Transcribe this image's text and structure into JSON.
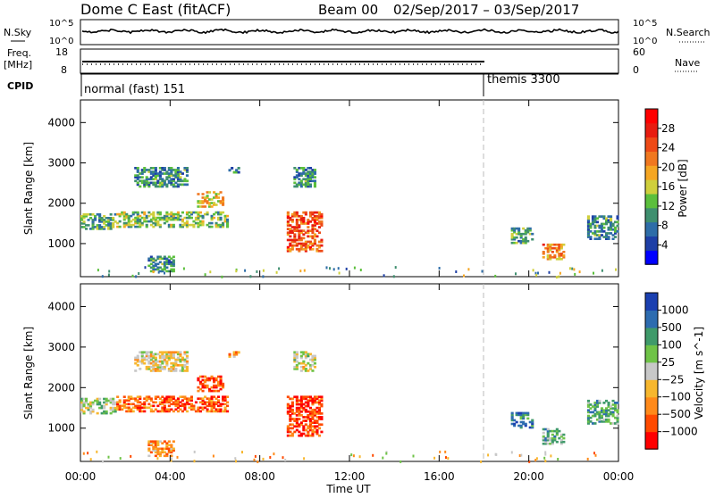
{
  "header": {
    "title": "Dome C East (fitACF)",
    "beam": "Beam 00",
    "date_range": "02/Sep/2017 – 03/Sep/2017"
  },
  "labels": {
    "nsky": "N.Sky",
    "nsearch": "N.Search",
    "freq": "Freq.",
    "mhz": "[MHz]",
    "nave": "Nave",
    "cpid": "CPID",
    "cpid_1": "normal (fast) 151",
    "cpid_2": "themis 3300"
  },
  "noise_panel": {
    "left_ticks": [
      "10^5",
      "10^0"
    ],
    "right_ticks": [
      "10^5",
      "10^0"
    ]
  },
  "freq_panel": {
    "left_ticks": [
      "18",
      "8"
    ],
    "right_ticks": [
      "60",
      "0"
    ]
  },
  "colors": {
    "power": [
      "#0000ff",
      "#1e3fa6",
      "#2e6da8",
      "#3f8f6f",
      "#5bbf3c",
      "#cfcf3c",
      "#f5a623",
      "#f07820",
      "#ee4a17",
      "#e81c10",
      "#ff0000"
    ],
    "velocity": [
      "#ff0000",
      "#ff4a00",
      "#ff8a1a",
      "#f7b72e",
      "#c8c8c8",
      "#6fc347",
      "#3f9a6a",
      "#2d6cb0",
      "#1a3fb0"
    ]
  },
  "chart_data": [
    {
      "type": "heatmap",
      "name": "power",
      "x_range": [
        0,
        24
      ],
      "x_ticks": [
        "00:00",
        "04:00",
        "08:00",
        "12:00",
        "16:00",
        "20:00",
        "00:00"
      ],
      "xlabel": "Time UT",
      "ylabel": "Slant Range [km]",
      "ylim": [
        180,
        4560
      ],
      "y_ticks": [
        1000,
        2000,
        3000,
        4000
      ],
      "colorbar_label": "Power [dB]",
      "colorbar_ticks": [
        4,
        8,
        12,
        16,
        20,
        24,
        28
      ],
      "colorbar_range": [
        0,
        32
      ],
      "mode_change_hour": 18,
      "echo_regions": [
        {
          "t0": 0.0,
          "t1": 1.6,
          "r0": 1350,
          "r1": 1750,
          "level": 0.35
        },
        {
          "t0": 1.6,
          "t1": 6.6,
          "r0": 1400,
          "r1": 1800,
          "level": 0.4
        },
        {
          "t0": 2.4,
          "t1": 4.8,
          "r0": 2400,
          "r1": 2900,
          "level": 0.3
        },
        {
          "t0": 5.2,
          "t1": 6.4,
          "r0": 1900,
          "r1": 2300,
          "level": 0.55
        },
        {
          "t0": 6.6,
          "t1": 7.1,
          "r0": 2750,
          "r1": 2900,
          "level": 0.3
        },
        {
          "t0": 3.0,
          "t1": 4.2,
          "r0": 300,
          "r1": 700,
          "level": 0.3
        },
        {
          "t0": 9.2,
          "t1": 10.8,
          "r0": 800,
          "r1": 1800,
          "level": 0.75
        },
        {
          "t0": 9.5,
          "t1": 10.5,
          "r0": 2400,
          "r1": 2900,
          "level": 0.3
        },
        {
          "t0": 19.2,
          "t1": 20.2,
          "r0": 1000,
          "r1": 1400,
          "level": 0.35
        },
        {
          "t0": 20.6,
          "t1": 21.6,
          "r0": 600,
          "r1": 1000,
          "level": 0.65
        },
        {
          "t0": 22.6,
          "t1": 24.0,
          "r0": 1100,
          "r1": 1700,
          "level": 0.3
        }
      ]
    },
    {
      "type": "heatmap",
      "name": "velocity",
      "x_range": [
        0,
        24
      ],
      "x_ticks": [
        "00:00",
        "04:00",
        "08:00",
        "12:00",
        "16:00",
        "20:00",
        "00:00"
      ],
      "xlabel": "Time UT",
      "ylabel": "Slant Range [km]",
      "ylim": [
        180,
        4560
      ],
      "y_ticks": [
        1000,
        2000,
        3000,
        4000
      ],
      "colorbar_label": "Velocity [m s^-1]",
      "colorbar_ticks": [
        "1000",
        "500",
        "100",
        "25",
        "−25",
        "−100",
        "−500",
        "−1000"
      ],
      "mode_change_hour": 18,
      "echo_regions": [
        {
          "t0": 0.0,
          "t1": 1.6,
          "r0": 1350,
          "r1": 1750,
          "level": 0.55
        },
        {
          "t0": 1.6,
          "t1": 6.6,
          "r0": 1400,
          "r1": 1800,
          "level": 0.2
        },
        {
          "t0": 2.4,
          "t1": 4.8,
          "r0": 2400,
          "r1": 2900,
          "level": 0.45
        },
        {
          "t0": 5.2,
          "t1": 6.4,
          "r0": 1900,
          "r1": 2300,
          "level": 0.15
        },
        {
          "t0": 6.6,
          "t1": 7.1,
          "r0": 2750,
          "r1": 2900,
          "level": 0.3
        },
        {
          "t0": 3.0,
          "t1": 4.2,
          "r0": 300,
          "r1": 700,
          "level": 0.3
        },
        {
          "t0": 9.2,
          "t1": 10.8,
          "r0": 800,
          "r1": 1800,
          "level": 0.12
        },
        {
          "t0": 9.5,
          "t1": 10.5,
          "r0": 2400,
          "r1": 2900,
          "level": 0.5
        },
        {
          "t0": 19.2,
          "t1": 20.2,
          "r0": 1000,
          "r1": 1400,
          "level": 0.8
        },
        {
          "t0": 20.6,
          "t1": 21.6,
          "r0": 600,
          "r1": 1000,
          "level": 0.65
        },
        {
          "t0": 22.6,
          "t1": 24.0,
          "r0": 1100,
          "r1": 1700,
          "level": 0.7
        }
      ]
    }
  ]
}
